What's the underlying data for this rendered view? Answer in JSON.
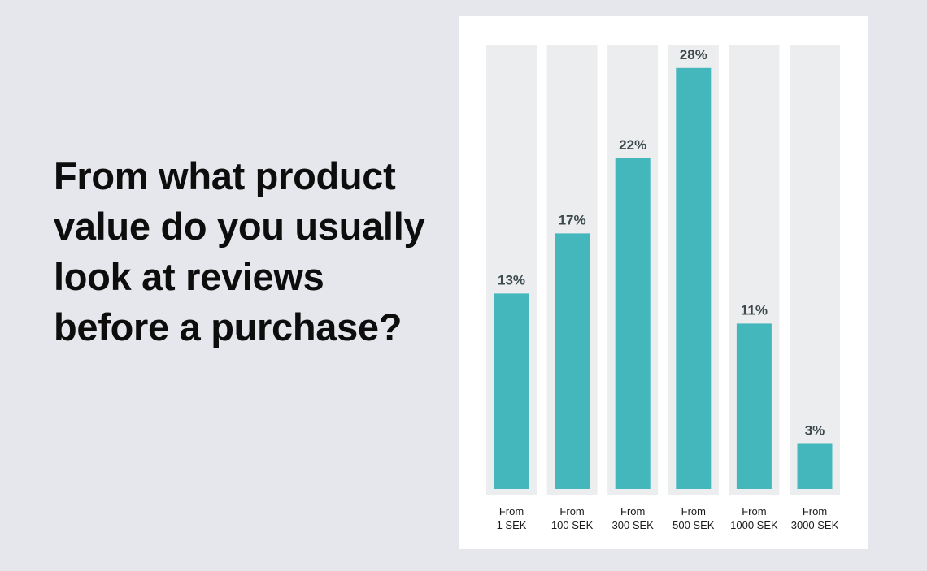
{
  "question": "From what product value do you usually look at reviews before a purchase?",
  "colors": {
    "page_background": "#e6e7ec",
    "card_background": "#ffffff",
    "track": "#ecedef",
    "bar": "#44b7bd",
    "value_label": "#3d4a4d"
  },
  "chart_data": {
    "type": "bar",
    "categories": [
      [
        "From",
        "1 SEK"
      ],
      [
        "From",
        "100 SEK"
      ],
      [
        "From",
        "300 SEK"
      ],
      [
        "From",
        "500 SEK"
      ],
      [
        "From",
        "1000 SEK"
      ],
      [
        "From",
        "3000 SEK"
      ]
    ],
    "values": [
      13,
      17,
      22,
      28,
      11,
      3
    ],
    "value_labels": [
      "13%",
      "17%",
      "22%",
      "28%",
      "11%",
      "3%"
    ],
    "unit": "%",
    "ylim": [
      0,
      29.5
    ],
    "grid": false,
    "legend": "none"
  }
}
